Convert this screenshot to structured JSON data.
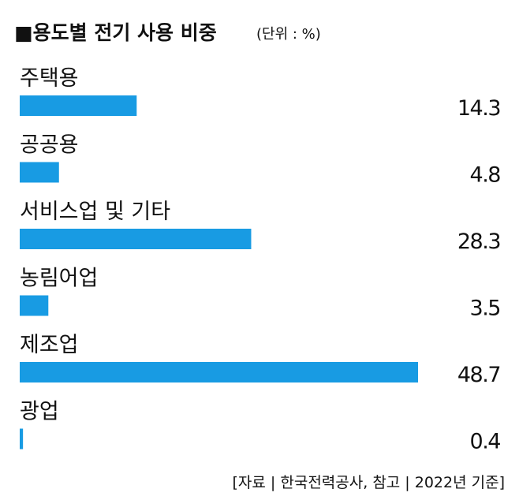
{
  "chart_data": {
    "type": "bar",
    "orientation": "horizontal",
    "title": "■용도별 전기 사용 비중",
    "subtitle": "(단위 : %)",
    "categories": [
      "주택용",
      "공공용",
      "서비스업 및 기타",
      "농림어업",
      "제조업",
      "광업"
    ],
    "values": [
      14.3,
      4.8,
      28.3,
      3.5,
      48.7,
      0.4
    ],
    "color": "#189be3",
    "xlim": [
      0,
      48.7
    ],
    "source": "[자료 | 한국전력공사, 참고 | 2022년 기준]"
  }
}
